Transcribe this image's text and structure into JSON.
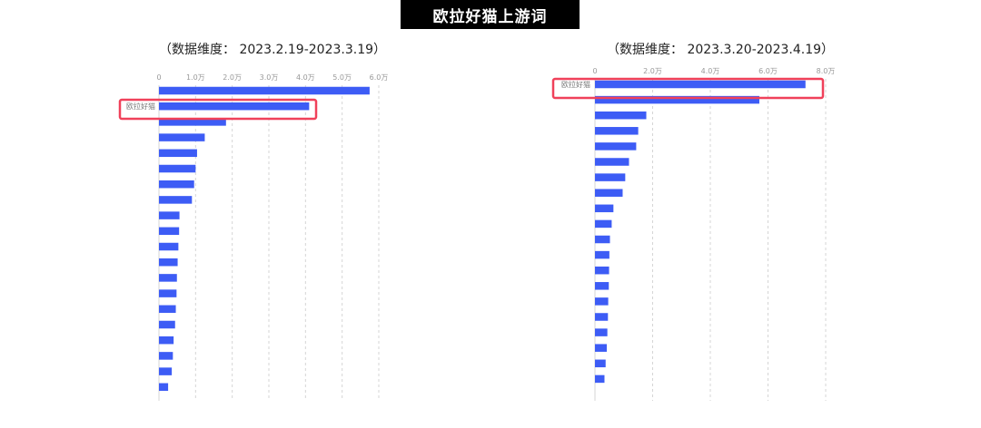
{
  "page": {
    "title": "欧拉好猫上游词"
  },
  "colors": {
    "bar": "#3d5cf5",
    "highlight": "#f0415a",
    "grid": "#d5d5d5",
    "axis_text": "#999999"
  },
  "chart_data": [
    {
      "type": "bar",
      "orientation": "horizontal",
      "subtitle": "（数据维度：  2023.2.19-2023.3.19）",
      "x_ticks": [
        "0",
        "1.0万",
        "2.0万",
        "3.0万",
        "4.0万",
        "5.0万",
        "6.0万"
      ],
      "xlim": [
        0,
        60000
      ],
      "grid": true,
      "categories": [
        "",
        "欧拉好猫",
        "",
        "",
        "",
        "",
        "",
        "",
        "",
        "",
        "",
        "",
        "",
        "",
        "",
        "",
        "",
        "",
        "",
        ""
      ],
      "values": [
        57500,
        41000,
        18300,
        12500,
        10400,
        10000,
        9600,
        9000,
        5600,
        5500,
        5300,
        5100,
        4900,
        4800,
        4600,
        4400,
        4000,
        3800,
        3500,
        2500
      ],
      "highlight_index": 1
    },
    {
      "type": "bar",
      "orientation": "horizontal",
      "subtitle": "（数据维度：  2023.3.20-2023.4.19）",
      "x_ticks": [
        "0",
        "2.0万",
        "4.0万",
        "6.0万",
        "8.0万"
      ],
      "xlim": [
        0,
        80000
      ],
      "grid": true,
      "categories": [
        "欧拉好猫",
        "",
        "",
        "",
        "",
        "",
        "",
        "",
        "",
        "",
        "",
        "",
        "",
        "",
        "",
        "",
        "",
        "",
        "",
        ""
      ],
      "values": [
        73000,
        57000,
        17800,
        15000,
        14300,
        11800,
        10500,
        9600,
        6400,
        5800,
        5200,
        5000,
        4900,
        4800,
        4600,
        4500,
        4300,
        4100,
        3700,
        3300
      ],
      "highlight_index": 0
    }
  ]
}
